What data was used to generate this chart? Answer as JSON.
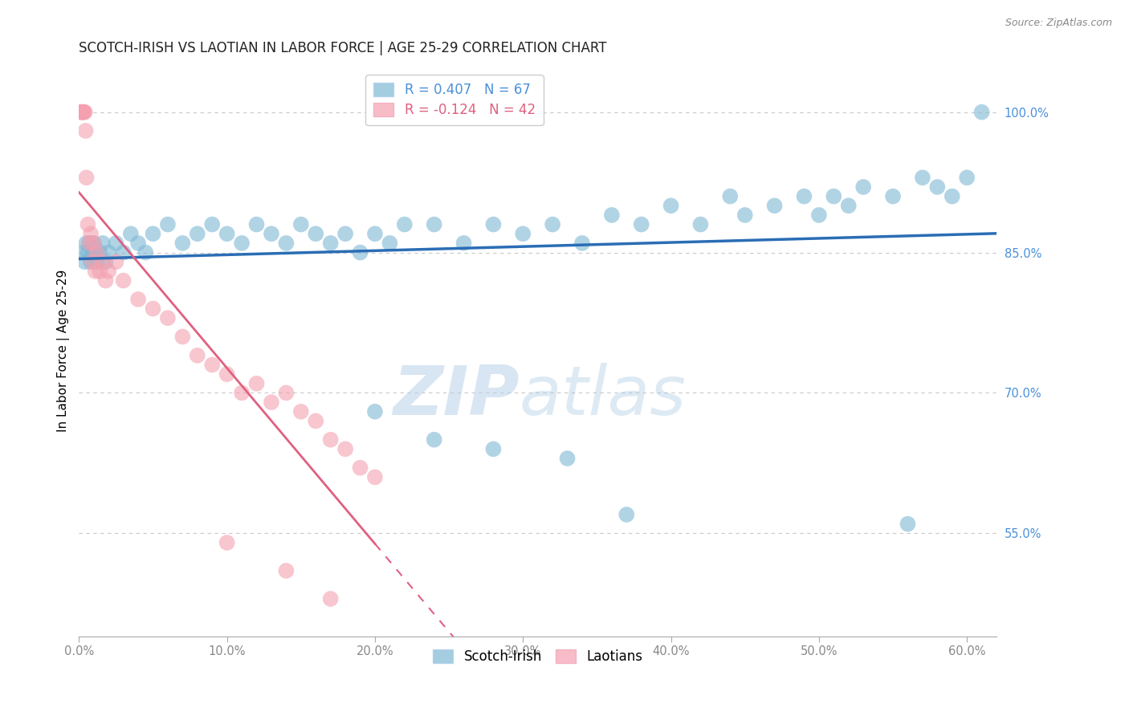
{
  "title": "SCOTCH-IRISH VS LAOTIAN IN LABOR FORCE | AGE 25-29 CORRELATION CHART",
  "source": "Source: ZipAtlas.com",
  "ylabel": "In Labor Force | Age 25-29",
  "x_tick_labels": [
    "0.0%",
    "10.0%",
    "20.0%",
    "30.0%",
    "40.0%",
    "50.0%",
    "60.0%"
  ],
  "x_ticks": [
    0.0,
    10.0,
    20.0,
    30.0,
    40.0,
    50.0,
    60.0
  ],
  "y_tick_labels_right": [
    "100.0%",
    "85.0%",
    "70.0%",
    "55.0%"
  ],
  "y_ticks_right": [
    100.0,
    85.0,
    70.0,
    55.0
  ],
  "xlim": [
    0.0,
    62.0
  ],
  "ylim": [
    44.0,
    105.0
  ],
  "scotch_irish_color": "#7eb8d4",
  "laotian_color": "#f4a0b0",
  "trend_blue_color": "#2a6db5",
  "trend_pink_color": "#e06080",
  "R_blue": 0.407,
  "N_blue": 67,
  "R_pink": -0.124,
  "N_pink": 42,
  "scotch_irish_x": [
    0.3,
    0.4,
    0.5,
    0.6,
    0.7,
    0.8,
    0.9,
    1.0,
    1.1,
    1.2,
    1.4,
    1.6,
    1.8,
    2.0,
    2.5,
    3.0,
    3.5,
    4.0,
    4.5,
    5.0,
    6.0,
    7.0,
    8.0,
    9.0,
    10.0,
    11.0,
    12.0,
    13.0,
    14.0,
    15.0,
    16.0,
    17.0,
    18.0,
    19.0,
    20.0,
    21.0,
    22.0,
    24.0,
    26.0,
    28.0,
    30.0,
    32.0,
    34.0,
    36.0,
    38.0,
    40.0,
    42.0,
    44.0,
    45.0,
    47.0,
    49.0,
    50.0,
    51.0,
    52.0,
    53.0,
    55.0,
    57.0,
    58.0,
    59.0,
    60.0,
    61.0,
    20.0,
    24.0,
    28.0,
    33.0,
    37.0,
    56.0
  ],
  "scotch_irish_y": [
    85.0,
    84.0,
    86.0,
    85.0,
    86.0,
    84.0,
    85.0,
    86.0,
    85.0,
    84.0,
    85.0,
    86.0,
    84.0,
    85.0,
    86.0,
    85.0,
    87.0,
    86.0,
    85.0,
    87.0,
    88.0,
    86.0,
    87.0,
    88.0,
    87.0,
    86.0,
    88.0,
    87.0,
    86.0,
    88.0,
    87.0,
    86.0,
    87.0,
    85.0,
    87.0,
    86.0,
    88.0,
    88.0,
    86.0,
    88.0,
    87.0,
    88.0,
    86.0,
    89.0,
    88.0,
    90.0,
    88.0,
    91.0,
    89.0,
    90.0,
    91.0,
    89.0,
    91.0,
    90.0,
    92.0,
    91.0,
    93.0,
    92.0,
    91.0,
    93.0,
    100.0,
    68.0,
    65.0,
    64.0,
    63.0,
    57.0,
    56.0
  ],
  "laotian_x": [
    0.1,
    0.15,
    0.2,
    0.25,
    0.3,
    0.35,
    0.4,
    0.45,
    0.5,
    0.6,
    0.7,
    0.8,
    0.9,
    1.0,
    1.1,
    1.2,
    1.4,
    1.6,
    1.8,
    2.0,
    2.5,
    3.0,
    4.0,
    5.0,
    6.0,
    7.0,
    8.0,
    9.0,
    10.0,
    11.0,
    12.0,
    13.0,
    14.0,
    15.0,
    16.0,
    17.0,
    18.0,
    19.0,
    20.0,
    10.0,
    14.0,
    17.0
  ],
  "laotian_y": [
    100.0,
    100.0,
    100.0,
    100.0,
    100.0,
    100.0,
    100.0,
    98.0,
    93.0,
    88.0,
    86.0,
    87.0,
    84.0,
    86.0,
    83.0,
    85.0,
    83.0,
    84.0,
    82.0,
    83.0,
    84.0,
    82.0,
    80.0,
    79.0,
    78.0,
    76.0,
    74.0,
    73.0,
    72.0,
    70.0,
    71.0,
    69.0,
    70.0,
    68.0,
    67.0,
    65.0,
    64.0,
    62.0,
    61.0,
    54.0,
    51.0,
    48.0
  ],
  "watermark_zip": "ZIP",
  "watermark_atlas": "atlas",
  "background_color": "#ffffff",
  "grid_color": "#c8c8c8",
  "title_fontsize": 12,
  "axis_label_fontsize": 11,
  "tick_fontsize": 10.5,
  "right_tick_color": "#4a90d9",
  "bottom_tick_color": "#888888"
}
